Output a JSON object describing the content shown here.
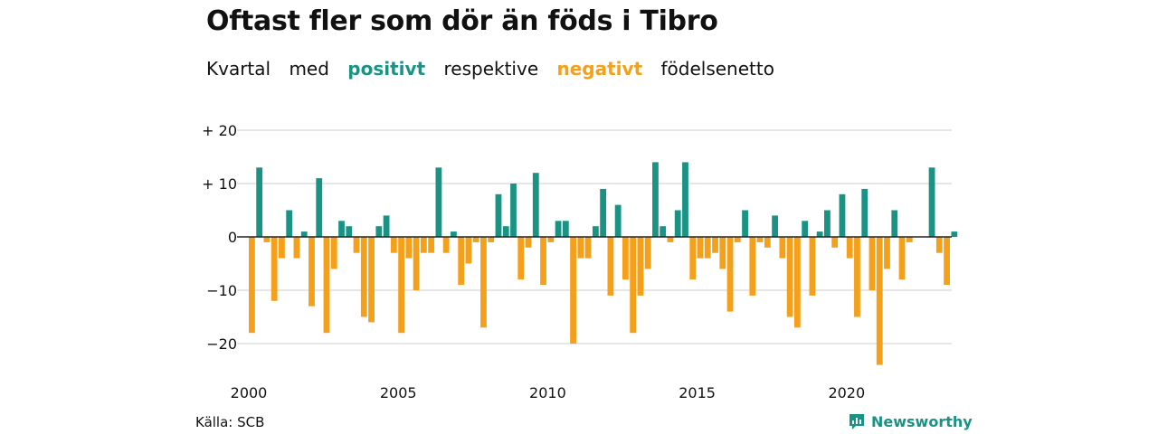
{
  "title": "Oftast fler som dör än föds i Tibro",
  "subtitle": {
    "w1": "Kvartal",
    "w2": "med",
    "positive": "positivt",
    "w3": "respektive",
    "negative": "negativt",
    "w4": "födelsenetto"
  },
  "source": "Källa: SCB",
  "brand": "Newsworthy",
  "colors": {
    "positive": "#1a9385",
    "negative": "#f5a01a",
    "grid": "#dddddd",
    "zero": "#222222"
  },
  "chart_data": {
    "type": "bar",
    "x_start": "2000-Q1",
    "ylim": [
      -25,
      22
    ],
    "yticks": [
      {
        "value": 20,
        "label": "+ 20"
      },
      {
        "value": 10,
        "label": "+ 10"
      },
      {
        "value": 0,
        "label": "0"
      },
      {
        "value": -10,
        "label": "−10"
      },
      {
        "value": -20,
        "label": "−20"
      }
    ],
    "xticks": [
      "2000",
      "2005",
      "2010",
      "2015",
      "2020"
    ],
    "values": [
      -18,
      13,
      -1,
      -12,
      -4,
      5,
      -4,
      1,
      -13,
      11,
      -18,
      -6,
      3,
      2,
      -3,
      -15,
      -16,
      2,
      4,
      -3,
      -18,
      -4,
      -10,
      -3,
      -3,
      13,
      -3,
      1,
      -9,
      -5,
      -1,
      -17,
      -1,
      8,
      2,
      10,
      -8,
      -2,
      12,
      -9,
      -1,
      3,
      3,
      -20,
      -4,
      -4,
      2,
      9,
      -11,
      6,
      -8,
      -18,
      -11,
      -6,
      14,
      2,
      -1,
      5,
      14,
      -8,
      -4,
      -4,
      -3,
      -6,
      -14,
      -1,
      5,
      -11,
      -1,
      -2,
      4,
      -4,
      -15,
      -17,
      3,
      -11,
      1,
      5,
      -2,
      8,
      -4,
      -15,
      9,
      -10,
      -24,
      -6,
      5,
      -8,
      -1,
      0,
      0,
      13,
      -3,
      -9,
      1
    ]
  }
}
